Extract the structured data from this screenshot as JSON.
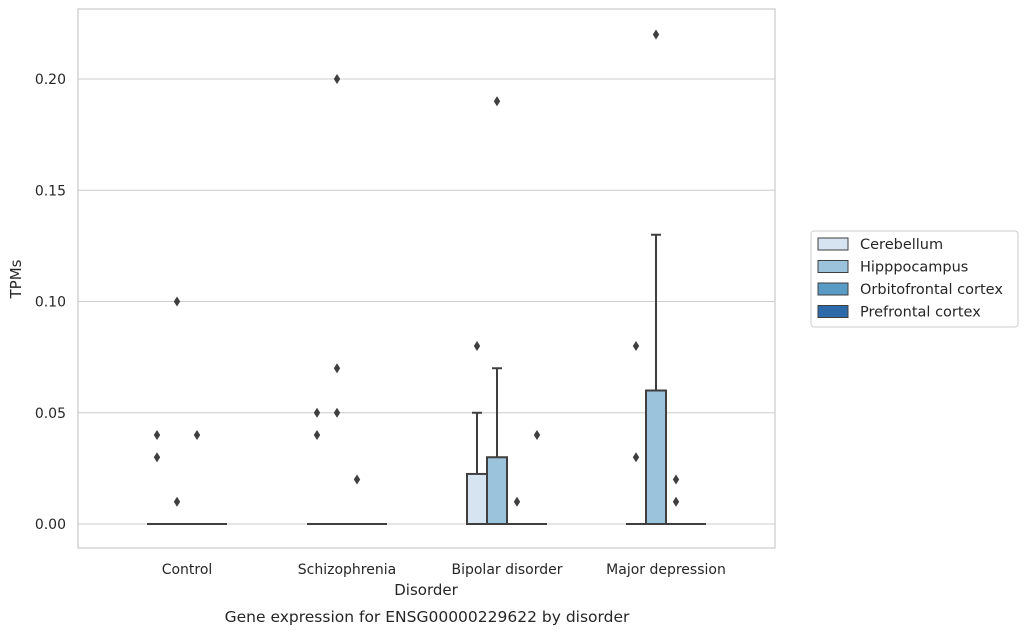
{
  "chart_data": {
    "type": "box",
    "caption": "Gene expression for ENSG00000229622 by disorder",
    "xlabel": "Disorder",
    "ylabel": "TPMs",
    "ylim": [
      -0.011,
      0.232
    ],
    "yticks": [
      0.0,
      0.05,
      0.1,
      0.15,
      0.2
    ],
    "ytick_labels": [
      "0.00",
      "0.05",
      "0.10",
      "0.15",
      "0.20"
    ],
    "grid": true,
    "legend_position": "right",
    "categories": [
      "Control",
      "Schizophrenia",
      "Bipolar disorder",
      "Major depression"
    ],
    "series": [
      {
        "name": "Cerebellum",
        "color": "#d6e4f1",
        "boxes": [
          {
            "q1": 0.0,
            "median": 0.0,
            "q3": 0.0,
            "whisker_low": 0.0,
            "whisker_high": 0.0,
            "outliers": [
              0.03,
              0.04
            ]
          },
          {
            "q1": 0.0,
            "median": 0.0,
            "q3": 0.0,
            "whisker_low": 0.0,
            "whisker_high": 0.0,
            "outliers": [
              0.04,
              0.05
            ]
          },
          {
            "q1": 0.0,
            "median": 0.0,
            "q3": 0.0225,
            "whisker_low": 0.0,
            "whisker_high": 0.05,
            "outliers": [
              0.08
            ]
          },
          {
            "q1": 0.0,
            "median": 0.0,
            "q3": 0.0,
            "whisker_low": 0.0,
            "whisker_high": 0.0,
            "outliers": [
              0.03,
              0.08
            ]
          }
        ]
      },
      {
        "name": "Hipppocampus",
        "color": "#9cc3dc",
        "boxes": [
          {
            "q1": 0.0,
            "median": 0.0,
            "q3": 0.0,
            "whisker_low": 0.0,
            "whisker_high": 0.0,
            "outliers": [
              0.01,
              0.1
            ]
          },
          {
            "q1": 0.0,
            "median": 0.0,
            "q3": 0.0,
            "whisker_low": 0.0,
            "whisker_high": 0.0,
            "outliers": [
              0.05,
              0.07,
              0.2
            ]
          },
          {
            "q1": 0.0,
            "median": 0.0,
            "q3": 0.03,
            "whisker_low": 0.0,
            "whisker_high": 0.07,
            "outliers": [
              0.19
            ]
          },
          {
            "q1": 0.0,
            "median": 0.0,
            "q3": 0.06,
            "whisker_low": 0.0,
            "whisker_high": 0.13,
            "outliers": [
              0.22
            ]
          }
        ]
      },
      {
        "name": "Orbitofrontal cortex",
        "color": "#5a9bc6",
        "boxes": [
          {
            "q1": 0.0,
            "median": 0.0,
            "q3": 0.0,
            "whisker_low": 0.0,
            "whisker_high": 0.0,
            "outliers": [
              0.04
            ]
          },
          {
            "q1": 0.0,
            "median": 0.0,
            "q3": 0.0,
            "whisker_low": 0.0,
            "whisker_high": 0.0,
            "outliers": [
              0.02
            ]
          },
          {
            "q1": 0.0,
            "median": 0.0,
            "q3": 0.0,
            "whisker_low": 0.0,
            "whisker_high": 0.0,
            "outliers": [
              0.01
            ]
          },
          {
            "q1": 0.0,
            "median": 0.0,
            "q3": 0.0,
            "whisker_low": 0.0,
            "whisker_high": 0.0,
            "outliers": [
              0.01,
              0.02
            ]
          }
        ]
      },
      {
        "name": "Prefrontal cortex",
        "color": "#2c6aa9",
        "boxes": [
          {
            "q1": 0.0,
            "median": 0.0,
            "q3": 0.0,
            "whisker_low": 0.0,
            "whisker_high": 0.0,
            "outliers": []
          },
          {
            "q1": 0.0,
            "median": 0.0,
            "q3": 0.0,
            "whisker_low": 0.0,
            "whisker_high": 0.0,
            "outliers": []
          },
          {
            "q1": 0.0,
            "median": 0.0,
            "q3": 0.0,
            "whisker_low": 0.0,
            "whisker_high": 0.0,
            "outliers": [
              0.04
            ]
          },
          {
            "q1": 0.0,
            "median": 0.0,
            "q3": 0.0,
            "whisker_low": 0.0,
            "whisker_high": 0.0,
            "outliers": []
          }
        ]
      }
    ]
  }
}
